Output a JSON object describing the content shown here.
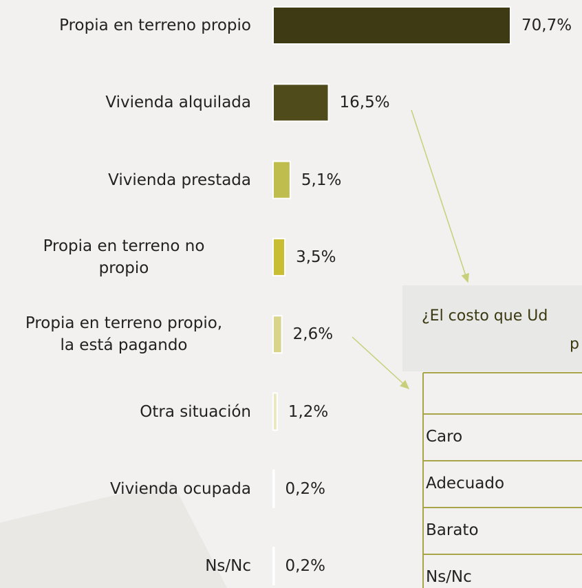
{
  "chart_data": {
    "type": "bar",
    "orientation": "horizontal",
    "categories": [
      "Propia en terreno propio",
      "Vivienda alquilada",
      "Vivienda prestada",
      "Propia en terreno no\npropio",
      "Propia en terreno propio,\nla está pagando",
      "Otra situación",
      "Vivienda ocupada",
      "Ns/Nc"
    ],
    "values": [
      70.7,
      16.5,
      5.1,
      3.5,
      2.6,
      1.2,
      0.2,
      0.2
    ],
    "value_labels": [
      "70,7%",
      "16,5%",
      "5,1%",
      "3,5%",
      "2,6%",
      "1,2%",
      "0,2%",
      "0,2%"
    ],
    "colors": [
      "#3d3a14",
      "#4f4b1a",
      "#bfbd4e",
      "#c9bd34",
      "#d8d48a",
      "#ebe7c2",
      "#dcdcd8",
      "#dcdcd8"
    ]
  },
  "panel": {
    "title": [
      "¿El costo que Ud",
      "p"
    ],
    "rows": [
      "Caro",
      "Adecuado",
      "Barato",
      "Ns/Nc"
    ]
  }
}
